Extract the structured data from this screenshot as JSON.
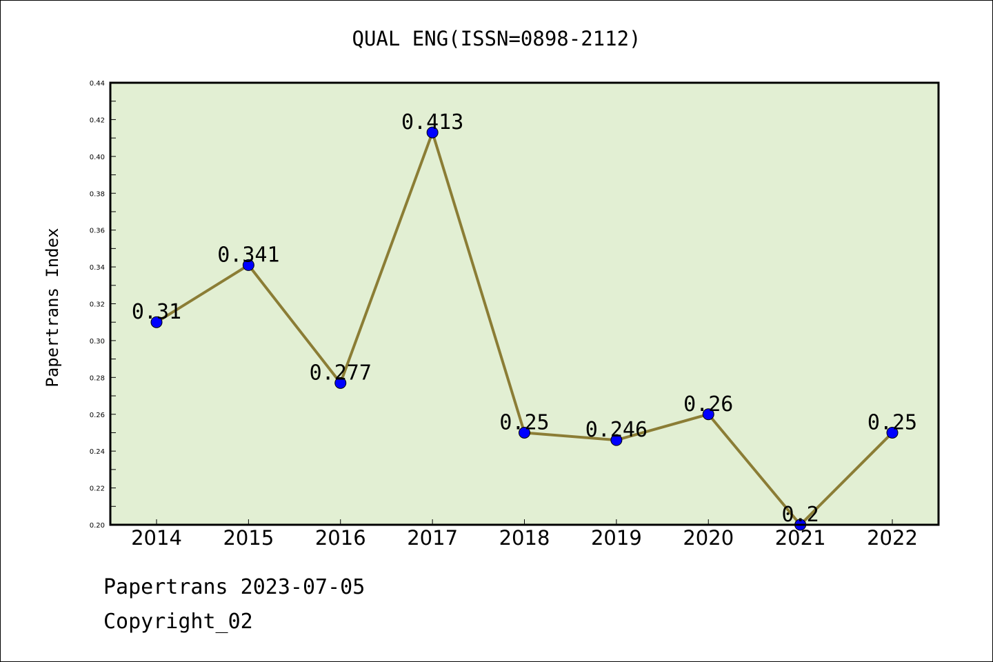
{
  "chart_data": {
    "type": "line",
    "title": "QUAL ENG(ISSN=0898-2112)",
    "xlabel": "",
    "ylabel": "Papertrans Index",
    "categories": [
      "2014",
      "2015",
      "2016",
      "2017",
      "2018",
      "2019",
      "2020",
      "2021",
      "2022"
    ],
    "series": [
      {
        "values": [
          0.31,
          0.341,
          0.277,
          0.413,
          0.25,
          0.246,
          0.26,
          0.2,
          0.25
        ],
        "data_labels": [
          "0.31",
          "0.341",
          "0.277",
          "0.413",
          "0.25",
          "0.246",
          "0.26",
          "0.2",
          "0.25"
        ]
      }
    ],
    "ylim": [
      0.2,
      0.44
    ],
    "yticks": [
      "0.20",
      "0.22",
      "0.24",
      "0.26",
      "0.28",
      "0.30",
      "0.32",
      "0.34",
      "0.36",
      "0.38",
      "0.40",
      "0.42",
      "0.44"
    ],
    "grid": false,
    "legend": "none",
    "colors": {
      "plot_background": "#e2efd3",
      "line": "#8b7d35",
      "marker": "#0000ff"
    }
  },
  "footer": {
    "date_text": "Papertrans 2023-07-05",
    "copyright_text": "Copyright_02"
  }
}
